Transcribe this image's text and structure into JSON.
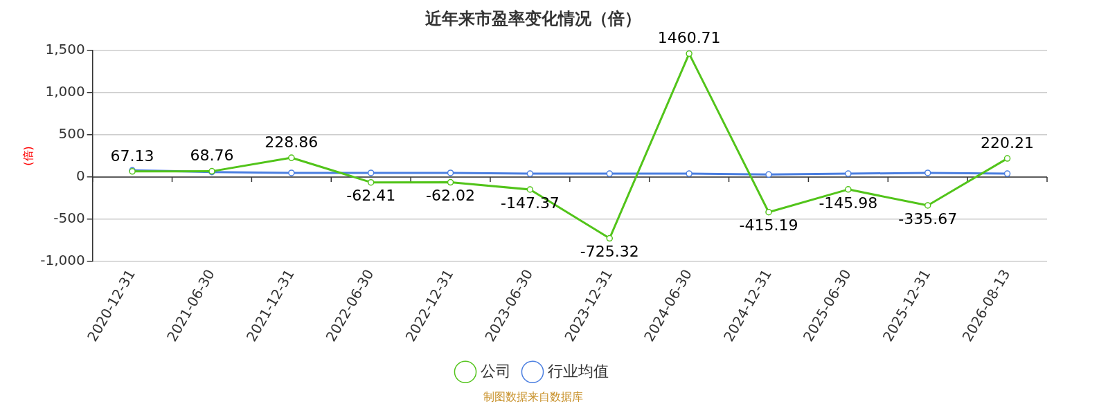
{
  "chart_data": {
    "type": "line",
    "title": "近年来市盈率变化情况（倍）",
    "ylabel": "(倍)",
    "categories": [
      "2020-12-31",
      "2021-06-30",
      "2021-12-31",
      "2022-06-30",
      "2022-12-31",
      "2023-06-30",
      "2023-12-31",
      "2024-06-30",
      "2024-12-31",
      "2025-06-30",
      "2025-12-31",
      "2026-08-13"
    ],
    "series": [
      {
        "name": "公司",
        "color": "#52c41a",
        "values": [
          67.13,
          68.76,
          228.86,
          -62.41,
          -62.02,
          -147.37,
          -725.32,
          1460.71,
          -415.19,
          -145.98,
          -335.67,
          220.21
        ],
        "value_labels": [
          "67.13",
          "68.76",
          "228.86",
          "-62.41",
          "-62.02",
          "-147.37",
          "-725.32",
          "1460.71",
          "-415.19",
          "-145.98",
          "-335.67",
          "220.21"
        ]
      },
      {
        "name": "行业均值",
        "color": "#4a7ee0",
        "values": [
          80,
          60,
          50,
          50,
          50,
          40,
          40,
          40,
          30,
          40,
          50,
          40
        ]
      }
    ],
    "ylim": [
      -1000,
      1500
    ],
    "yticks": [
      {
        "value": -1000,
        "label": "-1,000"
      },
      -500,
      0,
      500,
      {
        "value": 1000,
        "label": "1,000"
      },
      {
        "value": 1500,
        "label": "1,500"
      }
    ],
    "grid": "y",
    "legend": "bottom",
    "marker": "circle",
    "line_style": "solid",
    "annotations": [
      "制图数据来自数据库"
    ]
  }
}
